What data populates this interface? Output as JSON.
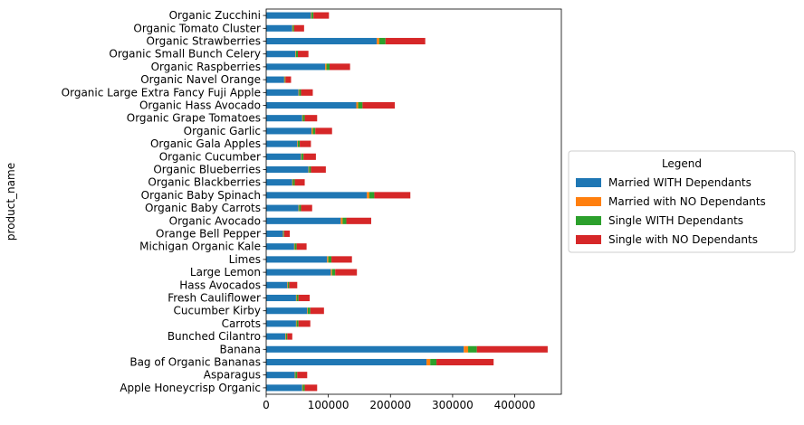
{
  "chart_data": {
    "type": "bar",
    "orientation": "horizontal",
    "stacked": true,
    "ylabel": "product_name",
    "xlabel": "",
    "xlim": [
      0,
      475000
    ],
    "xticks": [
      0,
      100000,
      200000,
      300000,
      400000
    ],
    "grid": false,
    "legend": {
      "title": "Legend",
      "placement": "right",
      "entries": [
        "Married WITH Dependants",
        "Married with NO Dependants",
        "Single WITH Dependants",
        "Single with NO Dependants"
      ]
    },
    "categories": [
      "Apple Honeycrisp Organic",
      "Asparagus",
      "Bag of Organic Bananas",
      "Banana",
      "Bunched Cilantro",
      "Carrots",
      "Cucumber Kirby",
      "Fresh Cauliflower",
      "Hass Avocados",
      "Large Lemon",
      "Limes",
      "Michigan Organic Kale",
      "Orange Bell Pepper",
      "Organic Avocado",
      "Organic Baby Carrots",
      "Organic Baby Spinach",
      "Organic Blackberries",
      "Organic Blueberries",
      "Organic Cucumber",
      "Organic Gala Apples",
      "Organic Garlic",
      "Organic Grape Tomatoes",
      "Organic Hass Avocado",
      "Organic Large Extra Fancy Fuji Apple",
      "Organic Navel Orange",
      "Organic Raspberries",
      "Organic Small Bunch Celery",
      "Organic Strawberries",
      "Organic Tomato Cluster",
      "Organic Zucchini"
    ],
    "series": [
      {
        "name": "Married WITH Dependants",
        "color": "#1f77b4",
        "values": [
          58000,
          46000,
          258000,
          318000,
          31000,
          48000,
          66000,
          48000,
          34000,
          104000,
          98000,
          45000,
          27000,
          120000,
          52000,
          162000,
          42000,
          68000,
          56000,
          50000,
          73000,
          58000,
          145000,
          52000,
          29000,
          95000,
          47000,
          178000,
          42000,
          72000
        ]
      },
      {
        "name": "Married with NO Dependants",
        "color": "#ff7f0e",
        "values": [
          1000,
          1000,
          6000,
          7000,
          1000,
          1000,
          1000,
          1000,
          1000,
          2000,
          2000,
          1000,
          1000,
          3000,
          1000,
          4000,
          1000,
          1000,
          1000,
          1000,
          2000,
          1000,
          3000,
          1000,
          1000,
          2000,
          1000,
          4000,
          1000,
          1000
        ]
      },
      {
        "name": "Single WITH Dependants",
        "color": "#2ca02c",
        "values": [
          3000,
          3000,
          10000,
          14000,
          2000,
          3000,
          4000,
          3000,
          2000,
          5000,
          5000,
          3000,
          1000,
          6000,
          3000,
          8000,
          3000,
          3000,
          3000,
          3000,
          4000,
          3000,
          7000,
          3000,
          1000,
          5000,
          3000,
          10000,
          2000,
          3000
        ]
      },
      {
        "name": "Single with NO Dependants",
        "color": "#d62728",
        "values": [
          20000,
          16000,
          92000,
          114000,
          8000,
          19000,
          22000,
          18000,
          13000,
          35000,
          33000,
          16000,
          9000,
          40000,
          18000,
          58000,
          16000,
          24000,
          20000,
          18000,
          27000,
          20000,
          52000,
          19000,
          9000,
          33000,
          17000,
          64000,
          16000,
          25000
        ]
      }
    ]
  }
}
